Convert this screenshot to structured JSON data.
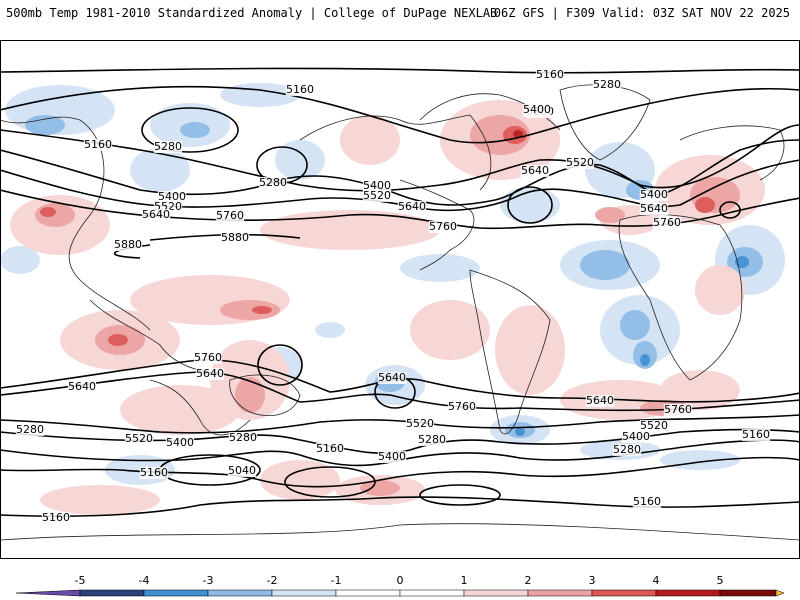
{
  "header": {
    "title": "500mb Temp 1981-2010 Standardized Anomaly | College of DuPage NEXLAB",
    "run_info": "06Z GFS | F309 Valid: 03Z SAT NOV 22 2025"
  },
  "colors": {
    "neg5": "#6a4aa8",
    "neg4": "#2b3f7a",
    "neg3": "#3f8fd2",
    "neg2": "#8dbbe6",
    "neg1": "#d3e3f4",
    "zero": "#ffffff",
    "pos1": "#f7d4d4",
    "pos2": "#eda2a2",
    "pos3": "#dd5555",
    "pos4": "#b41c1c",
    "pos5": "#7a0a0a",
    "pos6": "#f2c12e",
    "contour": "#000000",
    "coast": "#222222"
  },
  "colorbar": {
    "ticks": [
      "-5",
      "-4",
      "-3",
      "-2",
      "-1",
      "0",
      "1",
      "2",
      "3",
      "4",
      "5"
    ]
  },
  "contour_labels": [
    {
      "id": "5160-top",
      "text": "5160"
    },
    {
      "id": "5160-ak",
      "text": "5160"
    },
    {
      "id": "5280-npac",
      "text": "5280"
    },
    {
      "id": "5280-ak",
      "text": "5280"
    },
    {
      "id": "5280-grl",
      "text": "5280"
    },
    {
      "id": "5160-asia",
      "text": "5160"
    },
    {
      "id": "5280-asia",
      "text": "5280"
    },
    {
      "id": "5400-asia",
      "text": "5400"
    },
    {
      "id": "5520-asia",
      "text": "5520"
    },
    {
      "id": "5640-asia",
      "text": "5640"
    },
    {
      "id": "5760-pac",
      "text": "5760"
    },
    {
      "id": "5880-a",
      "text": "5880"
    },
    {
      "id": "5880-b",
      "text": "5880"
    },
    {
      "id": "5400-us",
      "text": "5400"
    },
    {
      "id": "5520-us",
      "text": "5520"
    },
    {
      "id": "5640-us",
      "text": "5640"
    },
    {
      "id": "5760-us",
      "text": "5760"
    },
    {
      "id": "5400-can",
      "text": "5400"
    },
    {
      "id": "5640-atl",
      "text": "5640"
    },
    {
      "id": "5520-atl",
      "text": "5520"
    },
    {
      "id": "5400-eu",
      "text": "5400"
    },
    {
      "id": "5640-eu",
      "text": "5640"
    },
    {
      "id": "5760-eu",
      "text": "5760"
    },
    {
      "id": "5760-sp1",
      "text": "5760"
    },
    {
      "id": "5640-sp1",
      "text": "5640"
    },
    {
      "id": "5640-sp2",
      "text": "5640"
    },
    {
      "id": "5640-sp3",
      "text": "5640"
    },
    {
      "id": "5760-sa",
      "text": "5760"
    },
    {
      "id": "5520-sa",
      "text": "5520"
    },
    {
      "id": "5280-sa",
      "text": "5280"
    },
    {
      "id": "5400-sa",
      "text": "5400"
    },
    {
      "id": "5640-satl",
      "text": "5640"
    },
    {
      "id": "5760-satl",
      "text": "5760"
    },
    {
      "id": "5520-satl",
      "text": "5520"
    },
    {
      "id": "5400-satl",
      "text": "5400"
    },
    {
      "id": "5280-satl",
      "text": "5280"
    },
    {
      "id": "5160-satl",
      "text": "5160"
    },
    {
      "id": "5280-so1",
      "text": "5280"
    },
    {
      "id": "5520-so1",
      "text": "5520"
    },
    {
      "id": "5400-so1",
      "text": "5400"
    },
    {
      "id": "5280-so2",
      "text": "5280"
    },
    {
      "id": "5160-so1",
      "text": "5160"
    },
    {
      "id": "5160-so2",
      "text": "5160"
    },
    {
      "id": "5040-so",
      "text": "5040"
    },
    {
      "id": "5160-bot1",
      "text": "5160"
    },
    {
      "id": "5160-bot2",
      "text": "5160"
    }
  ]
}
